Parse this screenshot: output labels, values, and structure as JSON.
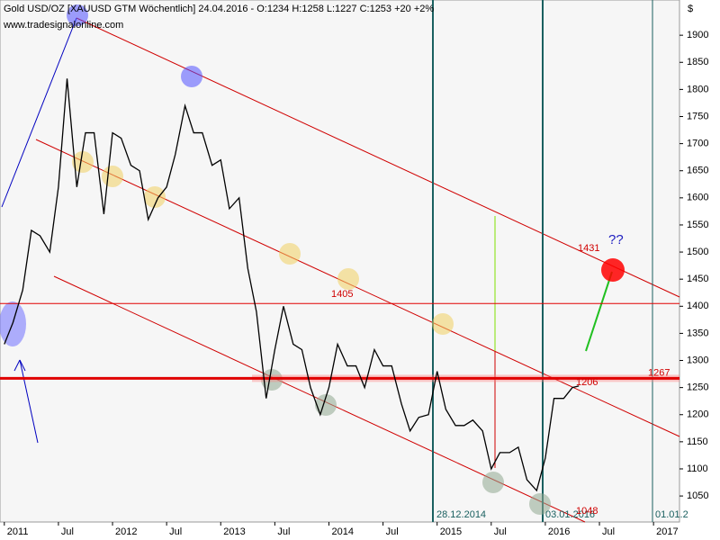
{
  "chart_data": {
    "type": "line",
    "title": "Gold USD/OZ [XAUUSD GTM  Wöchentlich] 24.04.2016 - O:1234 H:1258 L:1227 C:1253 +20 +2%",
    "watermark": "www.tradesignalonline.com",
    "y_unit": "$",
    "series": [
      {
        "name": "Gold",
        "color": "#000000",
        "x": [
          2011.0,
          2011.08,
          2011.17,
          2011.25,
          2011.33,
          2011.42,
          2011.5,
          2011.58,
          2011.67,
          2011.75,
          2011.83,
          2011.92,
          2012.0,
          2012.08,
          2012.17,
          2012.25,
          2012.33,
          2012.42,
          2012.5,
          2012.58,
          2012.67,
          2012.75,
          2012.83,
          2012.92,
          2013.0,
          2013.08,
          2013.17,
          2013.25,
          2013.33,
          2013.42,
          2013.5,
          2013.58,
          2013.67,
          2013.75,
          2013.83,
          2013.92,
          2014.0,
          2014.08,
          2014.17,
          2014.25,
          2014.33,
          2014.42,
          2014.5,
          2014.58,
          2014.67,
          2014.75,
          2014.83,
          2014.92,
          2015.0,
          2015.08,
          2015.17,
          2015.25,
          2015.33,
          2015.42,
          2015.5,
          2015.58,
          2015.67,
          2015.75,
          2015.83,
          2015.92,
          2016.0,
          2016.08,
          2016.17,
          2016.25,
          2016.31
        ],
        "values": [
          1330,
          1370,
          1430,
          1540,
          1530,
          1500,
          1620,
          1820,
          1620,
          1720,
          1720,
          1570,
          1720,
          1710,
          1660,
          1650,
          1560,
          1600,
          1620,
          1680,
          1770,
          1720,
          1720,
          1660,
          1670,
          1580,
          1600,
          1470,
          1390,
          1230,
          1320,
          1400,
          1330,
          1320,
          1250,
          1200,
          1250,
          1330,
          1290,
          1290,
          1250,
          1320,
          1290,
          1290,
          1220,
          1170,
          1195,
          1200,
          1280,
          1210,
          1180,
          1180,
          1190,
          1170,
          1100,
          1130,
          1130,
          1140,
          1080,
          1060,
          1120,
          1230,
          1230,
          1250,
          1253
        ]
      }
    ],
    "levels": [
      1405,
      1267
    ],
    "price_labels": [
      1431,
      1206
    ],
    "question": "??",
    "date_labels": [
      "28.12.2014",
      "03.01.2016",
      "01.01.2"
    ],
    "low_label": "1048",
    "xlim": [
      2010.96,
      2017.24
    ],
    "ylim": [
      1002,
      1965
    ],
    "xticks": [
      {
        "value": 2011,
        "label": "2011"
      },
      {
        "value": 2011.5,
        "label": "Jul"
      },
      {
        "value": 2012,
        "label": "2012"
      },
      {
        "value": 2012.5,
        "label": "Jul"
      },
      {
        "value": 2013,
        "label": "2013"
      },
      {
        "value": 2013.5,
        "label": "Jul"
      },
      {
        "value": 2014,
        "label": "2014"
      },
      {
        "value": 2014.5,
        "label": "Jul"
      },
      {
        "value": 2015,
        "label": "2015"
      },
      {
        "value": 2015.5,
        "label": "Jul"
      },
      {
        "value": 2016,
        "label": "2016"
      },
      {
        "value": 2016.5,
        "label": "Jul"
      },
      {
        "value": 2017,
        "label": "2017"
      }
    ],
    "yticks": [
      1050,
      1100,
      1150,
      1200,
      1250,
      1300,
      1350,
      1400,
      1450,
      1500,
      1550,
      1600,
      1650,
      1700,
      1750,
      1800,
      1850,
      1900
    ]
  }
}
